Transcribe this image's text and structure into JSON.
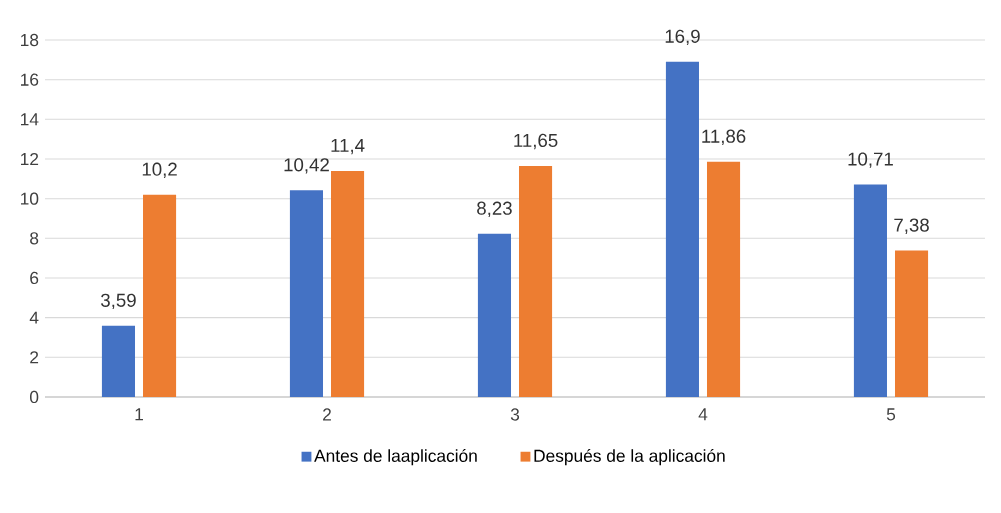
{
  "chart_data": {
    "type": "bar",
    "categories": [
      "1",
      "2",
      "3",
      "4",
      "5"
    ],
    "series": [
      {
        "name": "Antes de laaplicación",
        "color": "#4472c4",
        "values": [
          3.59,
          10.42,
          8.23,
          16.9,
          10.71
        ],
        "value_labels": [
          "3,59",
          "10,42",
          "8,23",
          "16,9",
          "10,71"
        ]
      },
      {
        "name": "Después de la aplicación",
        "color": "#ed7d31",
        "values": [
          10.2,
          11.4,
          11.65,
          11.86,
          7.38
        ],
        "value_labels": [
          "10,2",
          "11,4",
          "11,65",
          "11,86",
          "7,38"
        ]
      }
    ],
    "ylim": [
      0,
      18
    ],
    "yticks": [
      0,
      2,
      4,
      6,
      8,
      10,
      12,
      14,
      16,
      18
    ],
    "grid": "y",
    "legend": "bottom"
  }
}
